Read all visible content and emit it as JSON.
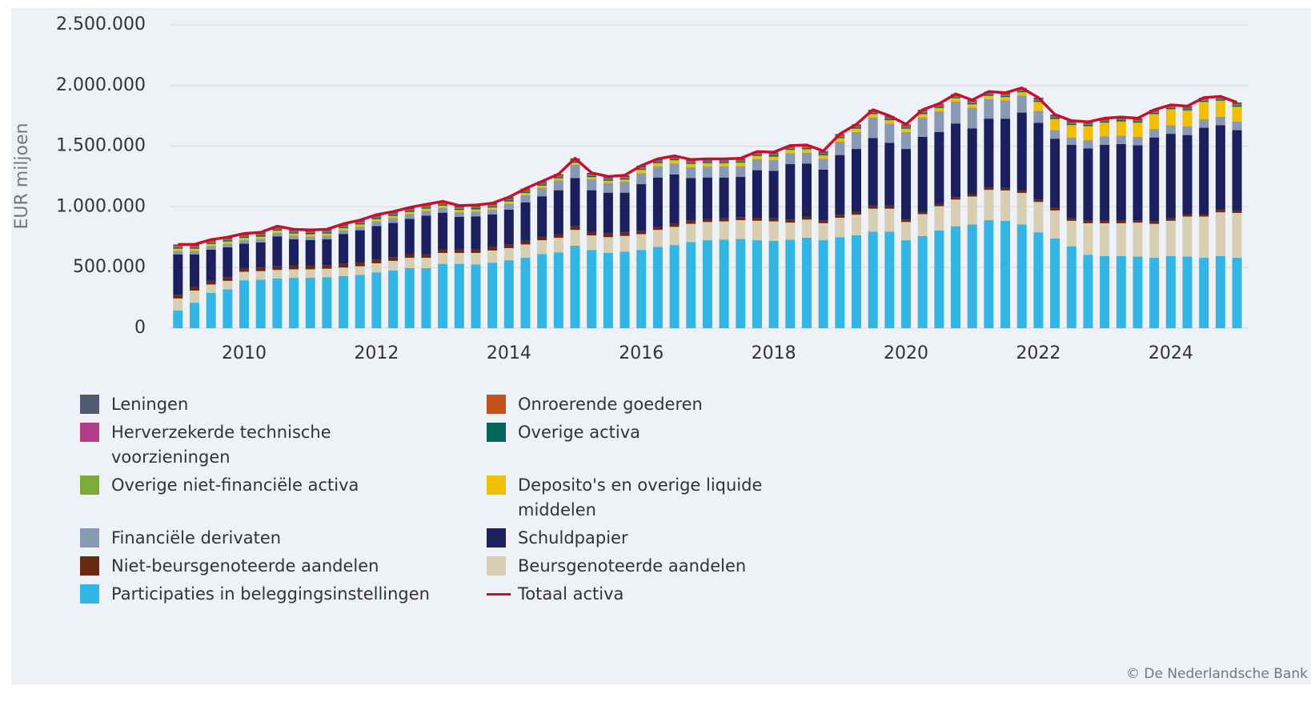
{
  "chart_data": {
    "type": "bar",
    "stacked": true,
    "y_label": "EUR miljoen",
    "source": "© De Nederlandsche Bank",
    "xlim": [
      2008.875,
      2025.175
    ],
    "xticks": [
      2010,
      2012,
      2014,
      2016,
      2018,
      2020,
      2022,
      2024
    ],
    "ylim": [
      0,
      2500000
    ],
    "yticks": [
      0,
      {
        "value": 500000,
        "label": "500.000"
      },
      {
        "value": 1000000,
        "label": "1.000.000"
      },
      {
        "value": 1500000,
        "label": "1.500.000"
      },
      {
        "value": 2000000,
        "label": "2.000.000"
      },
      {
        "value": 2500000,
        "label": "2.500.000"
      }
    ],
    "grid": true,
    "x": [
      2009,
      2009.25,
      2009.5,
      2009.75,
      2010,
      2010.25,
      2010.5,
      2010.75,
      2011,
      2011.25,
      2011.5,
      2011.75,
      2012,
      2012.25,
      2012.5,
      2012.75,
      2013,
      2013.25,
      2013.5,
      2013.75,
      2014,
      2014.25,
      2014.5,
      2014.75,
      2015,
      2015.25,
      2015.5,
      2015.75,
      2016,
      2016.25,
      2016.5,
      2016.75,
      2017,
      2017.25,
      2017.5,
      2017.75,
      2018,
      2018.25,
      2018.5,
      2018.75,
      2019,
      2019.25,
      2019.5,
      2019.75,
      2020,
      2020.25,
      2020.5,
      2020.75,
      2021,
      2021.25,
      2021.5,
      2021.75,
      2022,
      2022.25,
      2022.5,
      2022.75,
      2023,
      2023.25,
      2023.5,
      2023.75,
      2024,
      2024.25,
      2024.5,
      2024.75,
      2025
    ],
    "series": [
      {
        "name": "Leningen",
        "color": "#4f5b6f",
        "values": [
          15000,
          15000,
          15000,
          15000,
          15000,
          15000,
          15000,
          15000,
          15000,
          15000,
          15000,
          15000,
          15000,
          15000,
          15000,
          15000,
          15000,
          15000,
          15000,
          15000,
          15000,
          15000,
          15000,
          15000,
          15000,
          15000,
          15000,
          15000,
          15000,
          15000,
          15000,
          15000,
          15000,
          15000,
          15000,
          15000,
          15000,
          15000,
          15000,
          15000,
          15000,
          15000,
          15000,
          15000,
          15000,
          15000,
          15000,
          15000,
          15000,
          15000,
          15000,
          15000,
          15000,
          15000,
          15000,
          15000,
          15000,
          15000,
          15000,
          15000,
          15000,
          15000,
          15000,
          15000,
          15000
        ]
      },
      {
        "name": "Onroerende goederen",
        "color": "#c4501b",
        "values": [
          8000,
          8000,
          8000,
          8000,
          8000,
          8000,
          8000,
          8000,
          8000,
          8000,
          8000,
          8000,
          8000,
          8000,
          8000,
          8000,
          8000,
          8000,
          8000,
          8000,
          8000,
          8000,
          8000,
          8000,
          8000,
          8000,
          8000,
          8000,
          8000,
          8000,
          8000,
          8000,
          8000,
          8000,
          8000,
          8000,
          8000,
          8000,
          8000,
          8000,
          8000,
          8000,
          8000,
          8000,
          8000,
          8000,
          8000,
          8000,
          8000,
          8000,
          8000,
          8000,
          8000,
          8000,
          8000,
          8000,
          8000,
          8000,
          8000,
          8000,
          8000,
          8000,
          8000,
          8000,
          8000
        ]
      },
      {
        "name": "Herverzekerde technische voorzieningen",
        "color": "#b23f85",
        "values": [
          2000,
          2000,
          2000,
          2000,
          2000,
          2000,
          2000,
          2000,
          2000,
          2000,
          2000,
          2000,
          2000,
          2000,
          2000,
          2000,
          2000,
          2000,
          2000,
          2000,
          2000,
          2000,
          2000,
          2000,
          2000,
          2000,
          2000,
          2000,
          2000,
          2000,
          2000,
          2000,
          2000,
          2000,
          2000,
          2000,
          2000,
          2000,
          2000,
          2000,
          2000,
          2000,
          2000,
          2000,
          2000,
          2000,
          2000,
          2000,
          2000,
          2000,
          2000,
          2000,
          2000,
          2000,
          2000,
          2000,
          2000,
          2000,
          2000,
          2000,
          2000,
          2000,
          2000,
          2000,
          2000
        ]
      },
      {
        "name": "Overige activa",
        "color": "#00695c",
        "values": [
          10000,
          10000,
          10000,
          10000,
          10000,
          10000,
          10000,
          10000,
          10000,
          10000,
          10000,
          10000,
          10000,
          10000,
          10000,
          10000,
          10000,
          10000,
          10000,
          10000,
          10000,
          10000,
          10000,
          10000,
          10000,
          10000,
          10000,
          10000,
          10000,
          10000,
          10000,
          10000,
          10000,
          10000,
          10000,
          10000,
          10000,
          10000,
          10000,
          10000,
          10000,
          10000,
          10000,
          10000,
          10000,
          10000,
          10000,
          10000,
          10000,
          10000,
          10000,
          10000,
          10000,
          10000,
          10000,
          10000,
          10000,
          10000,
          10000,
          10000,
          10000,
          10000,
          10000,
          10000,
          10000
        ]
      },
      {
        "name": "Overige niet-financiële activa",
        "color": "#7cab3c",
        "values": [
          3000,
          3000,
          3000,
          3000,
          3000,
          3000,
          3000,
          3000,
          3000,
          3000,
          3000,
          3000,
          3000,
          3000,
          3000,
          3000,
          3000,
          3000,
          3000,
          3000,
          3000,
          3000,
          3000,
          3000,
          3000,
          3000,
          3000,
          3000,
          3000,
          3000,
          3000,
          3000,
          3000,
          3000,
          3000,
          3000,
          3000,
          3000,
          3000,
          3000,
          3000,
          3000,
          3000,
          3000,
          3000,
          3000,
          3000,
          3000,
          3000,
          3000,
          3000,
          3000,
          3000,
          3000,
          3000,
          3000,
          3000,
          3000,
          3000,
          3000,
          3000,
          3000,
          3000,
          3000,
          3000
        ]
      },
      {
        "name": "Deposito's en overige liquide middelen",
        "color": "#efbf00",
        "values": [
          15000,
          15000,
          15000,
          15000,
          15000,
          15000,
          15000,
          15000,
          15000,
          15000,
          15000,
          15000,
          15000,
          15000,
          15000,
          15000,
          15000,
          15000,
          15000,
          15000,
          15000,
          15000,
          15000,
          15000,
          15000,
          15000,
          15000,
          15000,
          25000,
          25000,
          25000,
          25000,
          25000,
          25000,
          25000,
          25000,
          25000,
          25000,
          25000,
          25000,
          25000,
          25000,
          25000,
          25000,
          25000,
          25000,
          25000,
          25000,
          25000,
          25000,
          25000,
          25000,
          70000,
          90000,
          100000,
          110000,
          110000,
          115000,
          115000,
          120000,
          130000,
          130000,
          140000,
          130000,
          120000
        ]
      },
      {
        "name": "Financiële derivaten",
        "color": "#8899b4",
        "values": [
          30000,
          30000,
          30000,
          30000,
          30000,
          30000,
          30000,
          30000,
          30000,
          30000,
          30000,
          30000,
          40000,
          40000,
          40000,
          40000,
          40000,
          40000,
          40000,
          40000,
          50000,
          60000,
          70000,
          80000,
          110000,
          90000,
          80000,
          90000,
          90000,
          90000,
          90000,
          90000,
          90000,
          90000,
          90000,
          90000,
          90000,
          90000,
          90000,
          90000,
          110000,
          140000,
          170000,
          160000,
          140000,
          160000,
          170000,
          180000,
          170000,
          160000,
          150000,
          140000,
          100000,
          70000,
          60000,
          70000,
          70000,
          70000,
          70000,
          70000,
          70000,
          70000,
          70000,
          70000,
          70000
        ]
      },
      {
        "name": "Schuldpapier",
        "color": "#1b1f5e",
        "values": [
          332000,
          267000,
          257000,
          247000,
          202000,
          207000,
          247000,
          217000,
          212000,
          212000,
          247000,
          267000,
          277000,
          282000,
          292000,
          317000,
          302000,
          267000,
          272000,
          267000,
          287000,
          317000,
          332000,
          362000,
          397000,
          342000,
          337000,
          327000,
          387000,
          407000,
          407000,
          352000,
          342000,
          337000,
          332000,
          392000,
          392000,
          457000,
          437000,
          417000,
          492000,
          517000,
          557000,
          517000,
          582000,
          617000,
          592000,
          607000,
          542000,
          567000,
          572000,
          642000,
          632000,
          572000,
          607000,
          597000,
          627000,
          632000,
          617000,
          692000,
          697000,
          652000,
          712000,
          697000,
          662000
        ]
      },
      {
        "name": "Niet-beursgenoteerde aandelen",
        "color": "#6a2911",
        "values": [
          30000,
          30000,
          30000,
          30000,
          30000,
          30000,
          30000,
          30000,
          30000,
          30000,
          30000,
          30000,
          30000,
          30000,
          30000,
          30000,
          30000,
          30000,
          30000,
          30000,
          30000,
          30000,
          30000,
          30000,
          30000,
          30000,
          30000,
          30000,
          25000,
          25000,
          25000,
          25000,
          25000,
          25000,
          25000,
          25000,
          25000,
          25000,
          25000,
          25000,
          25000,
          25000,
          25000,
          25000,
          20000,
          20000,
          20000,
          20000,
          20000,
          20000,
          20000,
          20000,
          20000,
          20000,
          20000,
          20000,
          20000,
          20000,
          20000,
          20000,
          20000,
          20000,
          20000,
          20000,
          20000
        ]
      },
      {
        "name": "Beursgenoteerde aandelen",
        "color": "#d8ceb1",
        "values": [
          100000,
          100000,
          70000,
          70000,
          70000,
          70000,
          70000,
          70000,
          70000,
          70000,
          70000,
          70000,
          75000,
          80000,
          85000,
          85000,
          90000,
          90000,
          95000,
          100000,
          100000,
          110000,
          115000,
          120000,
          130000,
          120000,
          130000,
          130000,
          130000,
          140000,
          150000,
          150000,
          150000,
          150000,
          155000,
          160000,
          160000,
          140000,
          150000,
          140000,
          160000,
          170000,
          190000,
          190000,
          150000,
          180000,
          200000,
          220000,
          230000,
          250000,
          250000,
          260000,
          250000,
          230000,
          210000,
          260000,
          270000,
          270000,
          280000,
          280000,
          290000,
          330000,
          340000,
          360000,
          370000
        ]
      },
      {
        "name": "Participaties in beleggingsinstellingen",
        "color": "#33b5e5",
        "values": [
          145000,
          210000,
          290000,
          320000,
          395000,
          400000,
          410000,
          415000,
          415000,
          420000,
          430000,
          440000,
          460000,
          475000,
          495000,
          495000,
          530000,
          530000,
          525000,
          540000,
          560000,
          580000,
          610000,
          625000,
          680000,
          645000,
          620000,
          630000,
          645000,
          670000,
          685000,
          710000,
          725000,
          730000,
          735000,
          725000,
          720000,
          730000,
          745000,
          725000,
          750000,
          765000,
          795000,
          795000,
          725000,
          760000,
          805000,
          840000,
          855000,
          890000,
          885000,
          855000,
          790000,
          740000,
          675000,
          605000,
          595000,
          595000,
          590000,
          580000,
          595000,
          590000,
          580000,
          595000,
          580000
        ]
      },
      {
        "name": "Totaal activa",
        "type": "line",
        "color": "#c8102e",
        "values": [
          690000,
          690000,
          730000,
          750000,
          780000,
          790000,
          840000,
          815000,
          810000,
          815000,
          860000,
          890000,
          935000,
          960000,
          995000,
          1020000,
          1045000,
          1010000,
          1015000,
          1030000,
          1080000,
          1150000,
          1210000,
          1270000,
          1400000,
          1280000,
          1250000,
          1260000,
          1340000,
          1395000,
          1420000,
          1390000,
          1395000,
          1395000,
          1400000,
          1455000,
          1450000,
          1505000,
          1510000,
          1460000,
          1600000,
          1680000,
          1800000,
          1750000,
          1680000,
          1800000,
          1850000,
          1930000,
          1880000,
          1950000,
          1940000,
          1980000,
          1900000,
          1760000,
          1710000,
          1700000,
          1730000,
          1740000,
          1730000,
          1800000,
          1840000,
          1830000,
          1900000,
          1910000,
          1860000
        ]
      }
    ]
  }
}
